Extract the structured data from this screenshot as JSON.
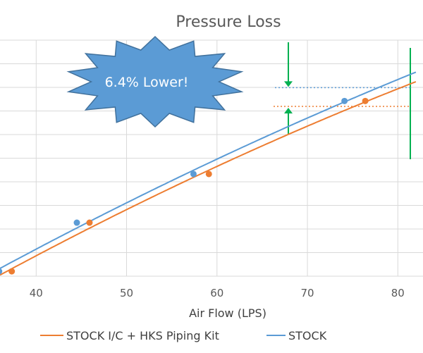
{
  "chart_data": {
    "type": "scatter",
    "title": "Pressure Loss",
    "xlabel": "Air Flow (LPS)",
    "ylabel": "",
    "xlim": [
      36,
      82
    ],
    "ylim": [
      0.8,
      10.5
    ],
    "x_ticks": [
      40,
      50,
      60,
      70,
      80
    ],
    "grid": true,
    "legend_position": "bottom",
    "trendlines": true,
    "series": [
      {
        "name": "STOCK I/C + HKS Piping Kit",
        "color": "#ED7D31",
        "points": [
          [
            37.3,
            1.0
          ],
          [
            45.9,
            3.0
          ],
          [
            59.1,
            5.0
          ],
          [
            76.4,
            8.0
          ]
        ]
      },
      {
        "name": "STOCK",
        "color": "#5B9BD5",
        "points": [
          [
            35.9,
            1.0
          ],
          [
            44.5,
            3.0
          ],
          [
            57.4,
            5.0
          ],
          [
            74.1,
            8.0
          ]
        ]
      }
    ],
    "annotation": {
      "text": "6.4% Lower!",
      "fill": "#5B9BD5",
      "marker_color": "#00B050"
    }
  }
}
